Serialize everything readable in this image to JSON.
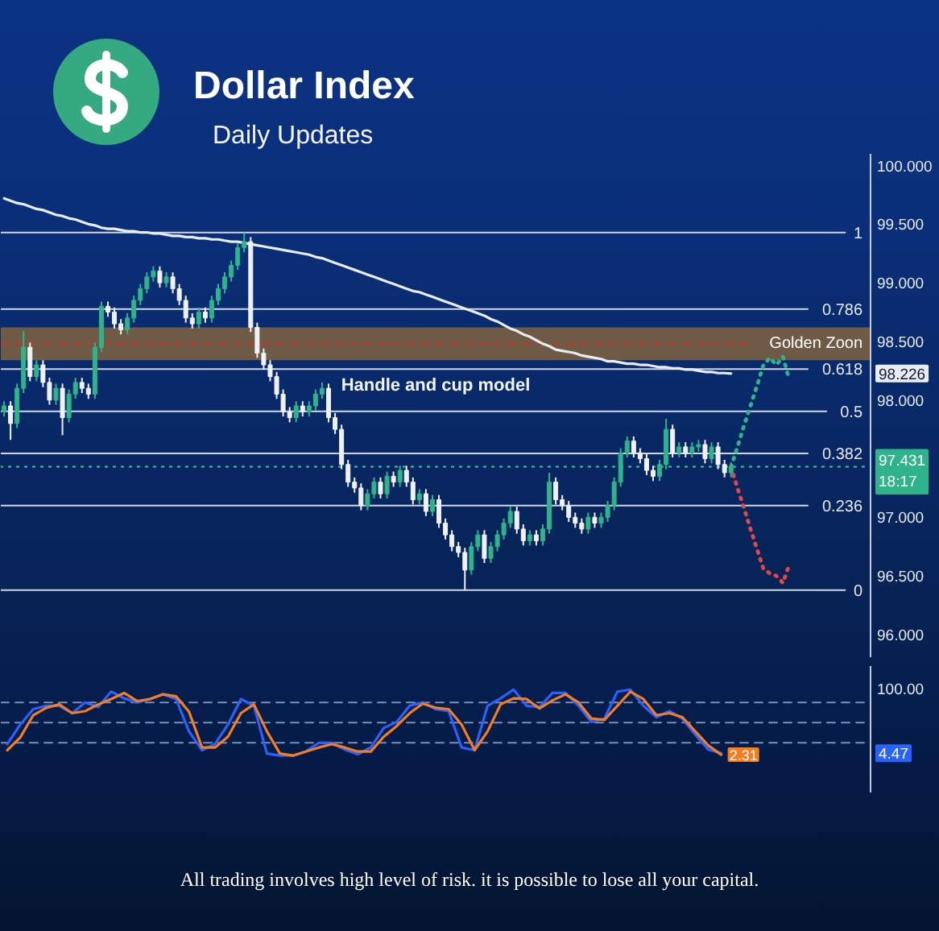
{
  "chart_data": [
    {
      "type": "candlestick",
      "title": "Dollar Index",
      "subtitle": "Daily Updates",
      "categories": [
        null,
        null,
        null,
        null,
        null,
        null,
        null,
        null,
        null,
        null,
        null,
        null,
        null,
        null,
        null,
        null,
        null,
        null,
        null,
        null,
        null,
        null,
        null,
        null,
        null,
        null,
        null,
        null,
        null,
        null,
        null,
        null,
        null,
        null,
        null,
        null,
        null,
        null,
        null,
        null,
        null,
        null,
        null,
        null,
        null,
        null,
        null,
        null,
        null,
        null,
        null,
        null,
        null,
        null,
        null,
        null,
        null,
        null,
        null,
        null,
        null,
        null,
        null,
        null,
        null,
        null,
        null,
        null,
        null,
        null,
        null,
        null,
        null,
        null,
        null,
        null,
        null,
        null,
        null,
        null,
        null,
        null,
        null,
        null,
        null,
        null,
        null,
        null,
        null,
        null,
        null,
        null,
        null,
        null,
        null,
        null,
        null,
        null,
        null,
        null,
        null,
        null,
        null,
        null,
        null,
        null,
        null,
        null,
        null,
        null,
        null,
        null,
        null,
        null,
        null,
        null,
        null,
        null,
        null,
        null,
        null,
        null,
        null,
        null,
        null,
        null,
        null,
        null,
        null,
        null,
        null,
        null,
        null,
        null
      ],
      "ohlc": [
        [
          97.9,
          97.99,
          97.86,
          97.95
        ],
        [
          97.95,
          97.99,
          97.66,
          97.8
        ],
        [
          97.8,
          98.14,
          97.76,
          98.1
        ],
        [
          98.1,
          98.59,
          98.06,
          98.45
        ],
        [
          98.45,
          98.49,
          98.16,
          98.2
        ],
        [
          98.2,
          98.34,
          98.16,
          98.3
        ],
        [
          98.3,
          98.34,
          98.11,
          98.15
        ],
        [
          98.15,
          98.19,
          97.96,
          98.0
        ],
        [
          98.0,
          98.14,
          97.96,
          98.1
        ],
        [
          98.1,
          98.14,
          97.7,
          97.85
        ],
        [
          97.85,
          98.09,
          97.81,
          98.05
        ],
        [
          98.05,
          98.19,
          98.01,
          98.15
        ],
        [
          98.15,
          98.19,
          98.06,
          98.1
        ],
        [
          98.1,
          98.14,
          98.01,
          98.05
        ],
        [
          98.05,
          98.49,
          98.01,
          98.45
        ],
        [
          98.45,
          98.84,
          98.41,
          98.8
        ],
        [
          98.8,
          98.84,
          98.71,
          98.75
        ],
        [
          98.75,
          98.79,
          98.61,
          98.65
        ],
        [
          98.65,
          98.69,
          98.56,
          98.6
        ],
        [
          98.6,
          98.74,
          98.56,
          98.7
        ],
        [
          98.7,
          98.89,
          98.66,
          98.85
        ],
        [
          98.85,
          98.99,
          98.81,
          98.95
        ],
        [
          98.95,
          99.09,
          98.91,
          99.05
        ],
        [
          99.05,
          99.14,
          99.01,
          99.1
        ],
        [
          99.1,
          99.14,
          98.96,
          99.0
        ],
        [
          99.0,
          99.09,
          98.96,
          99.05
        ],
        [
          99.05,
          99.09,
          98.91,
          98.95
        ],
        [
          98.95,
          98.99,
          98.81,
          98.85
        ],
        [
          98.85,
          98.89,
          98.66,
          98.7
        ],
        [
          98.7,
          98.74,
          98.61,
          98.65
        ],
        [
          98.65,
          98.79,
          98.61,
          98.75
        ],
        [
          98.75,
          98.79,
          98.66,
          98.7
        ],
        [
          98.7,
          98.89,
          98.66,
          98.85
        ],
        [
          98.85,
          98.99,
          98.81,
          98.95
        ],
        [
          98.95,
          99.09,
          98.91,
          99.05
        ],
        [
          99.05,
          99.19,
          99.01,
          99.15
        ],
        [
          99.15,
          99.34,
          99.11,
          99.3
        ],
        [
          99.3,
          99.43,
          99.26,
          99.35
        ],
        [
          99.35,
          99.39,
          98.58,
          98.62
        ],
        [
          98.62,
          98.66,
          98.36,
          98.4
        ],
        [
          98.4,
          98.44,
          98.26,
          98.3
        ],
        [
          98.3,
          98.34,
          98.16,
          98.2
        ],
        [
          98.2,
          98.24,
          98.01,
          98.05
        ],
        [
          98.05,
          98.09,
          97.86,
          97.9
        ],
        [
          97.9,
          97.94,
          97.81,
          97.85
        ],
        [
          97.85,
          97.99,
          97.81,
          97.95
        ],
        [
          97.95,
          97.99,
          97.86,
          97.9
        ],
        [
          97.9,
          97.99,
          97.86,
          97.95
        ],
        [
          97.95,
          98.09,
          97.91,
          98.05
        ],
        [
          98.05,
          98.15,
          98.01,
          98.1
        ],
        [
          98.1,
          98.14,
          97.81,
          97.85
        ],
        [
          97.85,
          97.89,
          97.71,
          97.75
        ],
        [
          97.75,
          97.79,
          97.41,
          97.45
        ],
        [
          97.45,
          97.49,
          97.26,
          97.3
        ],
        [
          97.3,
          97.34,
          97.21,
          97.25
        ],
        [
          97.25,
          97.29,
          97.06,
          97.1
        ],
        [
          97.1,
          97.24,
          97.06,
          97.2
        ],
        [
          97.2,
          97.34,
          97.16,
          97.3
        ],
        [
          97.3,
          97.34,
          97.16,
          97.2
        ],
        [
          97.2,
          97.39,
          97.16,
          97.35
        ],
        [
          97.35,
          97.39,
          97.26,
          97.3
        ],
        [
          97.3,
          97.44,
          97.26,
          97.4
        ],
        [
          97.4,
          97.44,
          97.26,
          97.3
        ],
        [
          97.3,
          97.34,
          97.11,
          97.15
        ],
        [
          97.15,
          97.24,
          97.11,
          97.2
        ],
        [
          97.2,
          97.24,
          97.01,
          97.05
        ],
        [
          97.05,
          97.19,
          97.01,
          97.15
        ],
        [
          97.15,
          97.19,
          96.91,
          96.95
        ],
        [
          96.95,
          96.99,
          96.81,
          96.85
        ],
        [
          96.85,
          96.89,
          96.71,
          96.75
        ],
        [
          96.75,
          96.79,
          96.66,
          96.7
        ],
        [
          96.7,
          96.74,
          96.38,
          96.55
        ],
        [
          96.55,
          96.79,
          96.51,
          96.75
        ],
        [
          96.75,
          96.89,
          96.71,
          96.85
        ],
        [
          96.85,
          96.89,
          96.61,
          96.65
        ],
        [
          96.65,
          96.79,
          96.61,
          96.75
        ],
        [
          96.75,
          96.89,
          96.71,
          96.85
        ],
        [
          96.85,
          96.99,
          96.81,
          96.95
        ],
        [
          96.95,
          97.09,
          96.91,
          97.05
        ],
        [
          97.05,
          97.09,
          96.86,
          96.9
        ],
        [
          96.9,
          96.94,
          96.76,
          96.8
        ],
        [
          96.8,
          96.89,
          96.76,
          96.85
        ],
        [
          96.85,
          96.89,
          96.76,
          96.8
        ],
        [
          96.8,
          96.94,
          96.76,
          96.9
        ],
        [
          96.9,
          97.38,
          96.86,
          97.3
        ],
        [
          97.3,
          97.34,
          97.11,
          97.15
        ],
        [
          97.15,
          97.19,
          97.06,
          97.1
        ],
        [
          97.1,
          97.14,
          96.96,
          97.0
        ],
        [
          97.0,
          97.04,
          96.91,
          96.95
        ],
        [
          96.95,
          96.99,
          96.86,
          96.9
        ],
        [
          96.9,
          97.04,
          96.86,
          97.0
        ],
        [
          97.0,
          97.04,
          96.91,
          96.95
        ],
        [
          96.95,
          97.04,
          96.91,
          97.0
        ],
        [
          97.0,
          97.14,
          96.96,
          97.1
        ],
        [
          97.1,
          97.34,
          97.06,
          97.3
        ],
        [
          97.3,
          97.59,
          97.26,
          97.55
        ],
        [
          97.55,
          97.69,
          97.51,
          97.65
        ],
        [
          97.65,
          97.69,
          97.51,
          97.55
        ],
        [
          97.55,
          97.59,
          97.46,
          97.5
        ],
        [
          97.5,
          97.54,
          97.36,
          97.4
        ],
        [
          97.4,
          97.44,
          97.31,
          97.35
        ],
        [
          97.35,
          97.49,
          97.31,
          97.45
        ],
        [
          97.45,
          97.84,
          97.41,
          97.75
        ],
        [
          97.75,
          97.79,
          97.51,
          97.55
        ],
        [
          97.55,
          97.64,
          97.51,
          97.6
        ],
        [
          97.6,
          97.64,
          97.51,
          97.55
        ],
        [
          97.55,
          97.64,
          97.51,
          97.6
        ],
        [
          97.6,
          97.66,
          97.56,
          97.62
        ],
        [
          97.62,
          97.66,
          97.46,
          97.5
        ],
        [
          97.5,
          97.64,
          97.46,
          97.6
        ],
        [
          97.6,
          97.64,
          97.41,
          97.45
        ],
        [
          97.45,
          97.49,
          97.34,
          97.38
        ],
        [
          97.38,
          97.47,
          97.34,
          97.43
        ],
        null,
        null,
        null,
        null,
        null,
        null,
        null,
        null,
        null,
        null,
        null,
        null,
        null,
        null,
        null,
        null,
        null,
        null,
        null,
        null,
        null
      ],
      "colors": [
        "#2fb38a",
        "#eef1f5",
        "#2fb38a",
        "#2fb38a",
        "#eef1f5",
        "#2fb38a",
        "#eef1f5",
        "#eef1f5",
        "#2fb38a",
        "#eef1f5",
        "#2fb38a",
        "#2fb38a",
        "#eef1f5",
        "#eef1f5",
        "#2fb38a",
        "#2fb38a",
        "#eef1f5",
        "#eef1f5",
        "#eef1f5",
        "#2fb38a",
        "#2fb38a",
        "#2fb38a",
        "#2fb38a",
        "#2fb38a",
        "#eef1f5",
        "#2fb38a",
        "#eef1f5",
        "#eef1f5",
        "#eef1f5",
        "#eef1f5",
        "#2fb38a",
        "#eef1f5",
        "#2fb38a",
        "#2fb38a",
        "#2fb38a",
        "#2fb38a",
        "#2fb38a",
        "#2fb38a",
        "#eef1f5",
        "#eef1f5",
        "#eef1f5",
        "#eef1f5",
        "#eef1f5",
        "#eef1f5",
        "#eef1f5",
        "#2fb38a",
        "#eef1f5",
        "#2fb38a",
        "#2fb38a",
        "#2fb38a",
        "#eef1f5",
        "#eef1f5",
        "#eef1f5",
        "#eef1f5",
        "#eef1f5",
        "#eef1f5",
        "#2fb38a",
        "#2fb38a",
        "#eef1f5",
        "#2fb38a",
        "#eef1f5",
        "#2fb38a",
        "#eef1f5",
        "#eef1f5",
        "#2fb38a",
        "#eef1f5",
        "#2fb38a",
        "#eef1f5",
        "#eef1f5",
        "#eef1f5",
        "#eef1f5",
        "#eef1f5",
        "#2fb38a",
        "#2fb38a",
        "#eef1f5",
        "#2fb38a",
        "#2fb38a",
        "#2fb38a",
        "#2fb38a",
        "#eef1f5",
        "#eef1f5",
        "#2fb38a",
        "#eef1f5",
        "#2fb38a",
        "#2fb38a",
        "#eef1f5",
        "#eef1f5",
        "#eef1f5",
        "#eef1f5",
        "#eef1f5",
        "#2fb38a",
        "#eef1f5",
        "#2fb38a",
        "#2fb38a",
        "#2fb38a",
        "#2fb38a",
        "#2fb38a",
        "#eef1f5",
        "#eef1f5",
        "#eef1f5",
        "#eef1f5",
        "#2fb38a",
        "#2fb38a",
        "#eef1f5",
        "#2fb38a",
        "#eef1f5",
        "#2fb38a",
        "#2fb38a",
        "#eef1f5",
        "#2fb38a",
        "#eef1f5",
        "#eef1f5",
        "#2fb38a",
        null,
        null,
        null,
        null,
        null,
        null,
        null,
        null,
        null,
        null,
        null,
        null,
        null,
        null,
        null,
        null,
        null,
        null,
        null,
        null,
        null
      ],
      "series": [
        {
          "type": "line",
          "color": "#e9edf2",
          "values": [
            99.72,
            99.7,
            99.68,
            99.67,
            99.65,
            99.63,
            99.62,
            99.6,
            99.58,
            99.57,
            99.55,
            99.54,
            99.52,
            99.5,
            99.49,
            99.47,
            99.46,
            99.46,
            99.45,
            99.44,
            99.44,
            99.43,
            99.43,
            99.42,
            99.42,
            99.41,
            99.4,
            99.4,
            99.39,
            99.39,
            99.38,
            99.38,
            99.37,
            99.37,
            99.36,
            99.35,
            99.35,
            99.34,
            99.33,
            99.32,
            99.31,
            99.3,
            99.29,
            99.28,
            99.27,
            99.26,
            99.25,
            99.24,
            99.22,
            99.21,
            99.19,
            99.17,
            99.15,
            99.13,
            99.11,
            99.09,
            99.07,
            99.05,
            99.03,
            99.01,
            98.99,
            98.97,
            98.95,
            98.93,
            98.92,
            98.9,
            98.88,
            98.86,
            98.84,
            98.82,
            98.8,
            98.78,
            98.76,
            98.74,
            98.72,
            98.69,
            98.67,
            98.64,
            98.61,
            98.59,
            98.56,
            98.54,
            98.51,
            98.48,
            98.46,
            98.43,
            98.42,
            98.41,
            98.4,
            98.38,
            98.37,
            98.36,
            98.35,
            98.33,
            98.33,
            98.32,
            98.31,
            98.31,
            98.3,
            98.3,
            98.29,
            98.28,
            98.28,
            98.27,
            98.27,
            98.26,
            98.26,
            98.25,
            98.24,
            98.24,
            98.23,
            98.23,
            98.226,
            null,
            null,
            null,
            null,
            null,
            null,
            null,
            null,
            null,
            null,
            null,
            null,
            null,
            null,
            null,
            null,
            null,
            null,
            null,
            null,
            null
          ]
        },
        {
          "type": "line",
          "color": "#2fb38a",
          "line_style": "dotted",
          "values": [
            null,
            null,
            null,
            null,
            null,
            null,
            null,
            null,
            null,
            null,
            null,
            null,
            null,
            null,
            null,
            null,
            null,
            null,
            null,
            null,
            null,
            null,
            null,
            null,
            null,
            null,
            null,
            null,
            null,
            null,
            null,
            null,
            null,
            null,
            null,
            null,
            null,
            null,
            null,
            null,
            null,
            null,
            null,
            null,
            null,
            null,
            null,
            null,
            null,
            null,
            null,
            null,
            null,
            null,
            null,
            null,
            null,
            null,
            null,
            null,
            null,
            null,
            null,
            null,
            null,
            null,
            null,
            null,
            null,
            null,
            null,
            null,
            null,
            null,
            null,
            null,
            null,
            null,
            null,
            null,
            null,
            null,
            null,
            null,
            null,
            null,
            null,
            null,
            null,
            null,
            null,
            null,
            null,
            null,
            null,
            null,
            null,
            null,
            null,
            null,
            null,
            null,
            null,
            null,
            null,
            null,
            null,
            null,
            null,
            null,
            null,
            null,
            97.43,
            97.6,
            97.78,
            97.95,
            98.12,
            98.3,
            98.36,
            98.3,
            98.37,
            98.17,
            null,
            null,
            null,
            null,
            null,
            null,
            null,
            null,
            null,
            null,
            null,
            null
          ]
        },
        {
          "type": "line",
          "color": "#e04848",
          "line_style": "dotted",
          "values": [
            null,
            null,
            null,
            null,
            null,
            null,
            null,
            null,
            null,
            null,
            null,
            null,
            null,
            null,
            null,
            null,
            null,
            null,
            null,
            null,
            null,
            null,
            null,
            null,
            null,
            null,
            null,
            null,
            null,
            null,
            null,
            null,
            null,
            null,
            null,
            null,
            null,
            null,
            null,
            null,
            null,
            null,
            null,
            null,
            null,
            null,
            null,
            null,
            null,
            null,
            null,
            null,
            null,
            null,
            null,
            null,
            null,
            null,
            null,
            null,
            null,
            null,
            null,
            null,
            null,
            null,
            null,
            null,
            null,
            null,
            null,
            null,
            null,
            null,
            null,
            null,
            null,
            null,
            null,
            null,
            null,
            null,
            null,
            null,
            null,
            null,
            null,
            null,
            null,
            null,
            null,
            null,
            null,
            null,
            null,
            null,
            null,
            null,
            null,
            null,
            null,
            null,
            null,
            null,
            null,
            null,
            null,
            null,
            null,
            null,
            null,
            null,
            97.43,
            97.25,
            97.08,
            96.9,
            96.73,
            96.56,
            96.52,
            96.5,
            96.44,
            96.6,
            null,
            null,
            null,
            null,
            null,
            null,
            null,
            null,
            null,
            null,
            null,
            null
          ]
        }
      ],
      "ylim": [
        95.8,
        100.1
      ],
      "yticks": [
        {
          "value": 96,
          "label": "96.000"
        },
        {
          "value": 96.5,
          "label": "96.500"
        },
        {
          "value": 97,
          "label": "97.000"
        },
        {
          "value": 98,
          "label": "98.000"
        },
        98.226,
        {
          "value": 98.5,
          "label": "98.500"
        },
        {
          "value": 99,
          "label": "99.000"
        },
        {
          "value": 99.5,
          "label": "99.500"
        },
        {
          "value": 100,
          "label": "100.000"
        }
      ],
      "y2lim": [
        -0.19,
        1.22
      ],
      "y2ticks": [
        0,
        0.236,
        0.382,
        0.5,
        0.618,
        0.786,
        1
      ],
      "ref_lines": [
        {
          "axis": "y2",
          "value": 1,
          "color": "#cfd6e2"
        },
        {
          "axis": "y2",
          "value": 0.786,
          "color": "#cfd6e2"
        },
        {
          "axis": "y2",
          "value": 0.618,
          "color": "#cfd6e2"
        },
        {
          "axis": "y2",
          "value": 0.5,
          "color": "#cfd6e2"
        },
        {
          "axis": "y2",
          "value": 0.382,
          "color": "#cfd6e2"
        },
        {
          "axis": "y2",
          "value": 0.236,
          "color": "#cfd6e2"
        },
        {
          "axis": "y2",
          "value": 0,
          "color": "#cfd6e2"
        },
        {
          "axis": "y",
          "value": 98.48,
          "color": "#c0392b",
          "line_style": "dashed"
        },
        {
          "axis": "y",
          "value": 97.431,
          "label": "97.431\n18:17",
          "color": "#2fb38a",
          "line_style": "dotted"
        }
      ],
      "bands": [
        {
          "axis": "y",
          "from": 98.34,
          "to": 98.62,
          "label": "Golden Zoon",
          "color": "#6e5a45"
        }
      ],
      "annotations": [
        "Handle and cup model"
      ],
      "tick_labels": "y"
    },
    {
      "type": "line",
      "categories": [
        null,
        null,
        null,
        null,
        null,
        null,
        null,
        null,
        null,
        null,
        null,
        null,
        null,
        null,
        null,
        null,
        null,
        null,
        null,
        null,
        null,
        null,
        null,
        null,
        null,
        null,
        null,
        null,
        null,
        null,
        null,
        null,
        null,
        null,
        null,
        null,
        null,
        null,
        null,
        null,
        null,
        null,
        null,
        null,
        null,
        null,
        null,
        null,
        null,
        null,
        null,
        null,
        null,
        null,
        null,
        null,
        null,
        null,
        null,
        null,
        null,
        null,
        null,
        null,
        null,
        null,
        null
      ],
      "series": [
        {
          "color": "#2962ff",
          "values": [
            18,
            47,
            70,
            75,
            75,
            64,
            80,
            73,
            96,
            86,
            80,
            85,
            92,
            85,
            37,
            9,
            18,
            47,
            85,
            75,
            4,
            1,
            1,
            7,
            20,
            20,
            10,
            3,
            13,
            42,
            51,
            75,
            80,
            70,
            67,
            13,
            9,
            75,
            86,
            99,
            75,
            73,
            94,
            94,
            75,
            51,
            56,
            96,
            99,
            75,
            58,
            67,
            56,
            32,
            10,
            4.47,
            null,
            null,
            null,
            null,
            null,
            null,
            null,
            null,
            null,
            null,
            null
          ]
        },
        {
          "color": "#f57c1f",
          "values": [
            9,
            28,
            61,
            72,
            77,
            64,
            67,
            77,
            85,
            94,
            82,
            85,
            92,
            89,
            66,
            13,
            13,
            29,
            64,
            77,
            37,
            4,
            1,
            7,
            13,
            18,
            13,
            7,
            7,
            29,
            45,
            64,
            78,
            72,
            70,
            47,
            9,
            37,
            77,
            86,
            85,
            71,
            83,
            92,
            80,
            56,
            54,
            75,
            96,
            85,
            61,
            64,
            58,
            37,
            16,
            2.31,
            null,
            null,
            null,
            null,
            null,
            null,
            null,
            null,
            null,
            null,
            null
          ],
          "value_labels": [
            null,
            null,
            null,
            null,
            null,
            null,
            null,
            null,
            null,
            null,
            null,
            null,
            null,
            null,
            null,
            null,
            null,
            null,
            null,
            null,
            null,
            null,
            null,
            null,
            null,
            null,
            null,
            null,
            null,
            null,
            null,
            null,
            null,
            null,
            null,
            null,
            null,
            null,
            null,
            null,
            null,
            null,
            null,
            null,
            null,
            null,
            null,
            null,
            null,
            null,
            null,
            null,
            null,
            null,
            null,
            "2.31",
            null,
            null,
            null,
            null,
            null,
            null,
            null,
            null,
            null,
            null,
            null
          ]
        }
      ],
      "ylim": [
        -55,
        134
      ],
      "yticks": [
        4.47,
        {
          "value": 100,
          "label": "100.00"
        }
      ],
      "ref_lines": [
        {
          "axis": "y",
          "value": 80,
          "color": "#7d8fb3",
          "line_style": "dashed"
        },
        {
          "axis": "y",
          "value": 50,
          "color": "#7d8fb3",
          "line_style": "dashed"
        },
        {
          "axis": "y",
          "value": 20,
          "color": "#7d8fb3",
          "line_style": "dashed"
        }
      ],
      "annotations": [
        "All trading involves high level of risk. it is possible to lose all your capital."
      ],
      "tick_labels": "y"
    }
  ]
}
